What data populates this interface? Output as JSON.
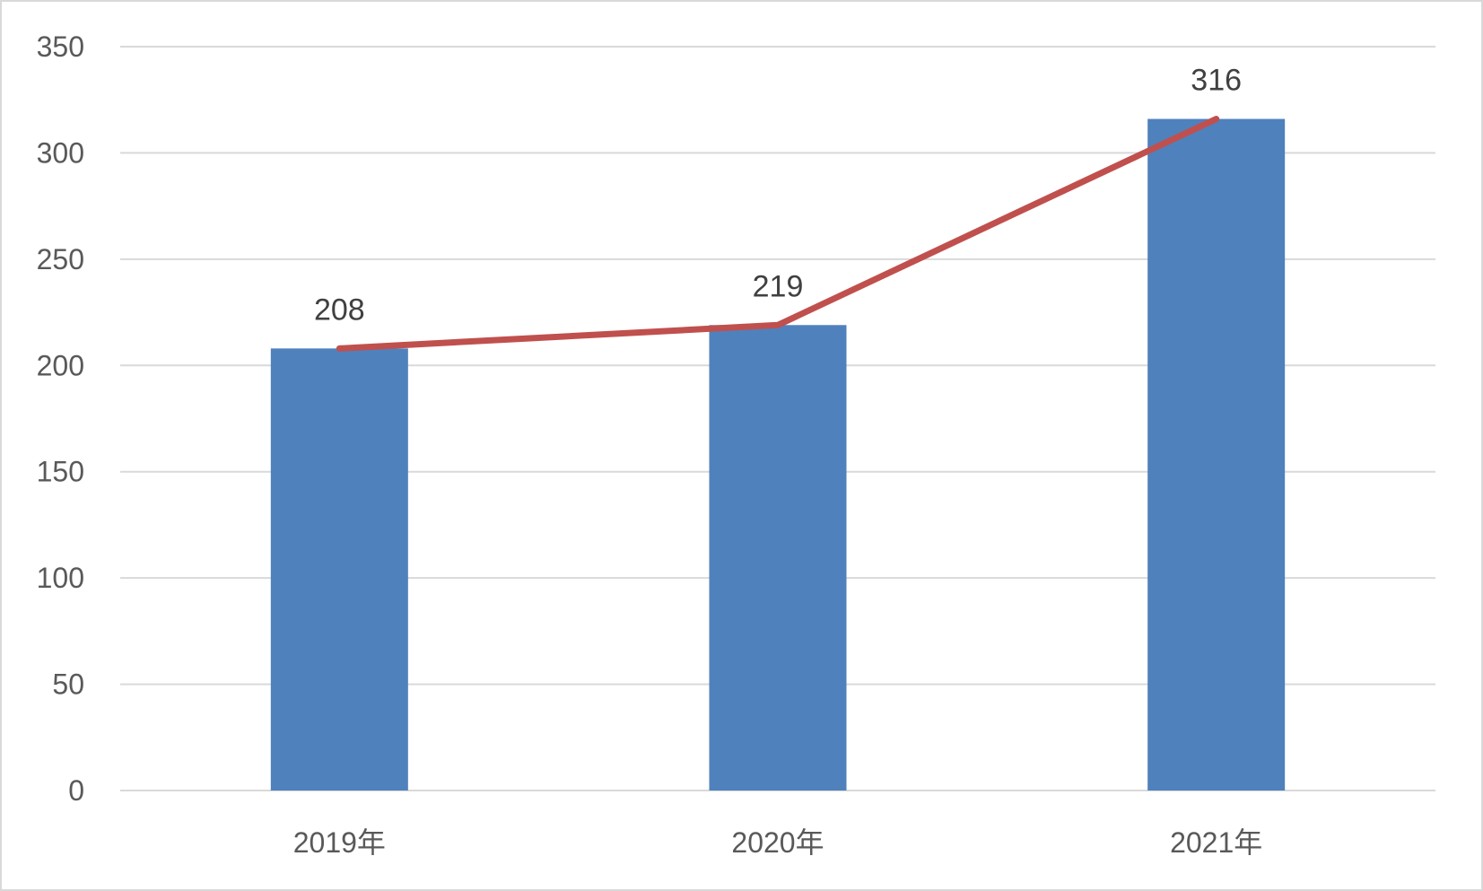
{
  "chart_data": {
    "type": "bar",
    "categories": [
      "2019年",
      "2020年",
      "2021年"
    ],
    "series": [
      {
        "type": "bar",
        "values": [
          208,
          219,
          316
        ],
        "color": "#4f81bd"
      },
      {
        "type": "line",
        "values": [
          208,
          219,
          316
        ],
        "color": "#c0504d"
      }
    ],
    "data_labels": [
      "208",
      "219",
      "316"
    ],
    "ylim": [
      0,
      350
    ],
    "yticks": [
      0,
      50,
      100,
      150,
      200,
      250,
      300,
      350
    ],
    "grid": true,
    "legend": "none",
    "title": "",
    "xlabel": "",
    "ylabel": ""
  }
}
